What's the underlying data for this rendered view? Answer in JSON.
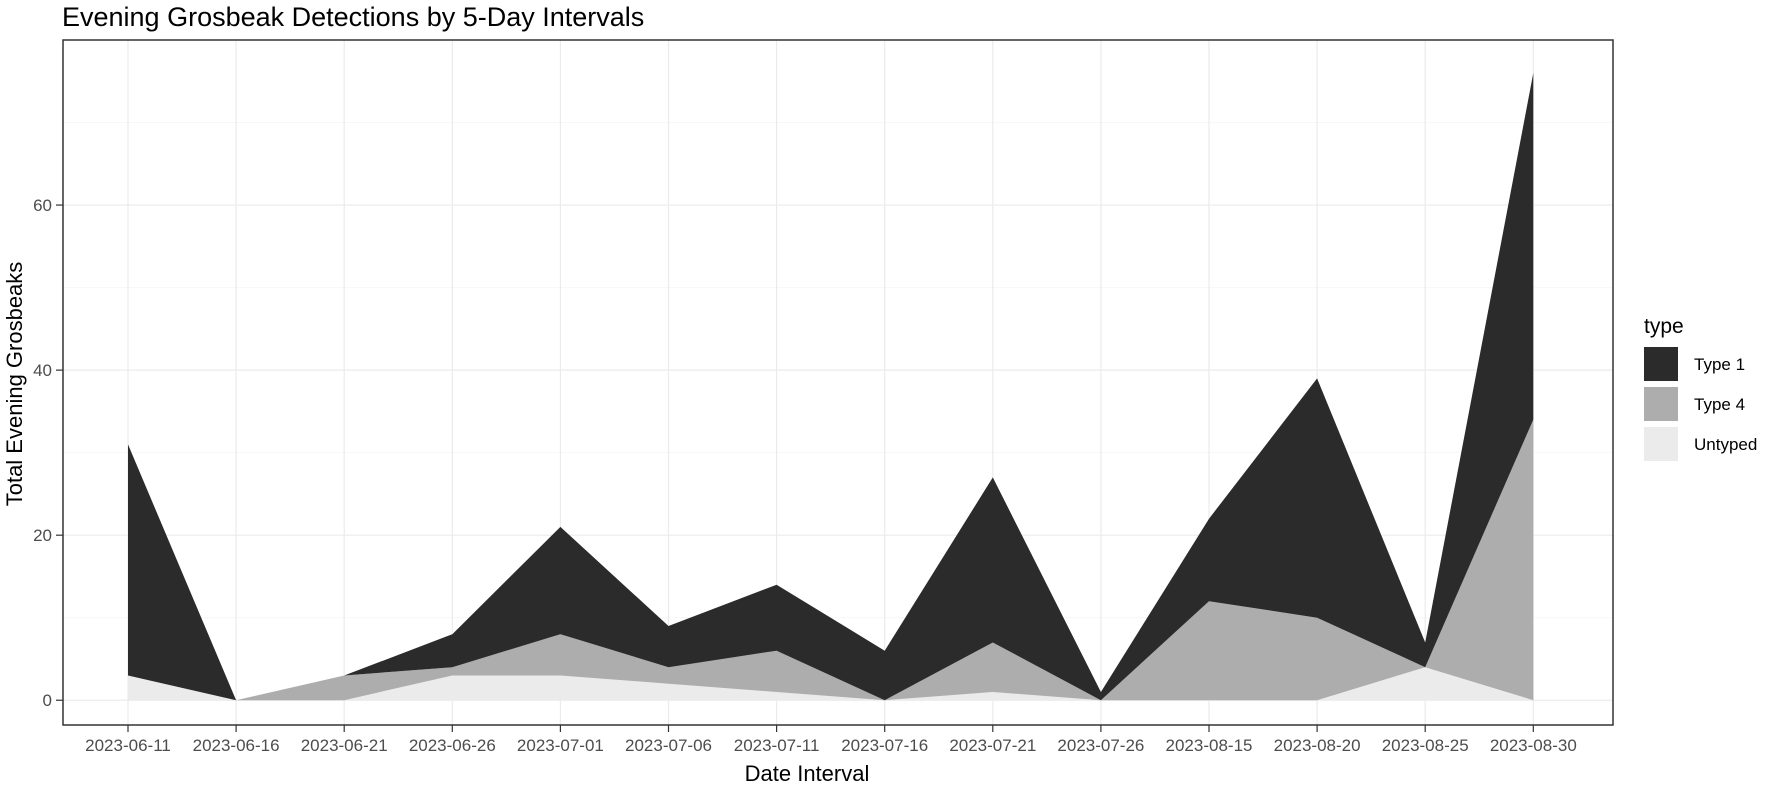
{
  "chart_data": {
    "type": "area",
    "stacked": true,
    "title": "Evening Grosbeak Detections by 5-Day Intervals",
    "xlabel": "Date Interval",
    "ylabel": "Total Evening Grosbeaks",
    "x": [
      "2023-06-11",
      "2023-06-16",
      "2023-06-21",
      "2023-06-26",
      "2023-07-01",
      "2023-07-06",
      "2023-07-11",
      "2023-07-16",
      "2023-07-21",
      "2023-07-26",
      "2023-08-15",
      "2023-08-20",
      "2023-08-25",
      "2023-08-30"
    ],
    "y_ticks": [
      0,
      20,
      40,
      60
    ],
    "ylim": [
      -3,
      80
    ],
    "grid": true,
    "legend": {
      "title": "type",
      "position": "right",
      "entries": [
        "Type 1",
        "Type 4",
        "Untyped"
      ]
    },
    "series": [
      {
        "name": "Untyped",
        "color": "#ebebeb",
        "values": [
          3,
          0,
          0,
          3,
          3,
          2,
          1,
          0,
          1,
          0,
          0,
          0,
          4,
          0
        ]
      },
      {
        "name": "Type 4",
        "color": "#adadad",
        "values": [
          0,
          0,
          3,
          1,
          5,
          2,
          5,
          0,
          6,
          0,
          12,
          10,
          0,
          34
        ]
      },
      {
        "name": "Type 1",
        "color": "#2b2b2b",
        "values": [
          28,
          0,
          0,
          4,
          13,
          5,
          8,
          6,
          20,
          1,
          10,
          29,
          3,
          42
        ]
      }
    ]
  }
}
